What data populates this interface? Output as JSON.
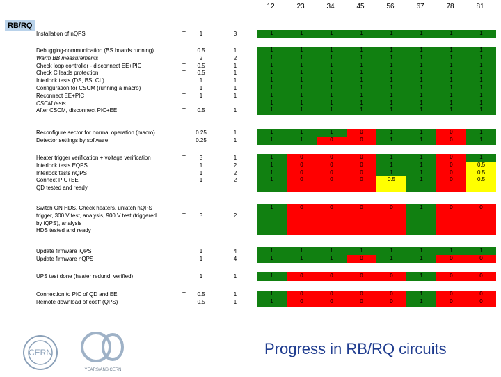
{
  "header": {
    "columns": [
      "12",
      "23",
      "34",
      "45",
      "56",
      "67",
      "78",
      "81"
    ]
  },
  "section_tag": "RB/RQ",
  "colors": {
    "green": "#118011",
    "red": "#ff0000",
    "yellow": "#ffff00",
    "blue": "#1f3c8f"
  },
  "groups": [
    {
      "lines": [
        {
          "t": "Installation of nQPS",
          "i": false
        }
      ],
      "t": [
        "T"
      ],
      "c1": [
        "1"
      ],
      "c2": [
        "3"
      ],
      "cells": [
        [
          "1",
          "1",
          "1",
          "1",
          "1",
          "1",
          "1",
          "1"
        ]
      ]
    },
    {
      "lines": [
        {
          "t": "Debugging-communication (BS boards running)",
          "i": false
        },
        {
          "t": "Warm BB measurements",
          "i": true
        },
        {
          "t": "Check loop controller - disconnect EE+PIC",
          "i": false
        },
        {
          "t": "Check C leads protection",
          "i": false
        },
        {
          "t": "Interlock tests (DS, BS, CL)",
          "i": false
        },
        {
          "t": "Configuration for CSCM (running a macro)",
          "i": false
        },
        {
          "t": "Reconnect EE+PIC",
          "i": false
        },
        {
          "t": "CSCM tests",
          "i": true
        },
        {
          "t": "After CSCM, disconnect PIC+EE",
          "i": false
        }
      ],
      "t": [
        "",
        "",
        "T",
        "T",
        "",
        "",
        "T",
        "",
        "T"
      ],
      "c1": [
        "0.5",
        "2",
        "0.5",
        "0.5",
        "1",
        "1",
        "1",
        "",
        "0.5"
      ],
      "c2": [
        "1",
        "2",
        "1",
        "1",
        "1",
        "1",
        "1",
        "",
        "1"
      ],
      "cells": [
        [
          "1",
          "1",
          "1",
          "1",
          "1",
          "1",
          "1",
          "1"
        ],
        [
          "1",
          "1",
          "1",
          "1",
          "1",
          "1",
          "1",
          "1"
        ],
        [
          "1",
          "1",
          "1",
          "1",
          "1",
          "1",
          "1",
          "1"
        ],
        [
          "1",
          "1",
          "1",
          "1",
          "1",
          "1",
          "1",
          "1"
        ],
        [
          "1",
          "1",
          "1",
          "1",
          "1",
          "1",
          "1",
          "1"
        ],
        [
          "1",
          "1",
          "1",
          "1",
          "1",
          "1",
          "1",
          "1"
        ],
        [
          "1",
          "1",
          "1",
          "1",
          "1",
          "1",
          "1",
          "1"
        ],
        [
          "1",
          "1",
          "1",
          "1",
          "1",
          "1",
          "1",
          "1"
        ],
        [
          "1",
          "1",
          "1",
          "1",
          "1",
          "1",
          "1",
          "1"
        ]
      ]
    },
    {
      "lines": [
        {
          "t": "Reconfigure sector for normal operation (macro)",
          "i": false
        },
        {
          "t": "Detector settings by software",
          "i": false
        }
      ],
      "t": [
        "",
        ""
      ],
      "c1": [
        "0.25",
        "0.25"
      ],
      "c2": [
        "1",
        "1"
      ],
      "cells": [
        [
          "1",
          "1",
          "1",
          "0",
          "1",
          "1",
          "0",
          "1"
        ],
        [
          "1",
          "1",
          "0",
          "0",
          "1",
          "1",
          "0",
          "1"
        ]
      ]
    },
    {
      "lines": [
        {
          "t": "Heater trigger verification + voltage verification",
          "i": false
        },
        {
          "t": "Interlock tests EQPS",
          "i": false
        },
        {
          "t": "Interlock tests nQPS",
          "i": false
        },
        {
          "t": "Connect PIC+EE",
          "i": false
        },
        {
          "t": "QD tested and ready",
          "i": false
        }
      ],
      "t": [
        "T",
        "",
        "",
        "T",
        ""
      ],
      "c1": [
        "3",
        "1",
        "1",
        "1",
        ""
      ],
      "c2": [
        "1",
        "2",
        "2",
        "2",
        ""
      ],
      "cells": [
        [
          "1",
          "0",
          "0",
          "0",
          "1",
          "1",
          "0",
          "1"
        ],
        [
          "1",
          "0",
          "0",
          "0",
          "1",
          "1",
          "0",
          "0.5"
        ],
        [
          "1",
          "0",
          "0",
          "0",
          "1",
          "1",
          "0",
          "0.5"
        ],
        [
          "1",
          "0",
          "0",
          "0",
          "0.5",
          "1",
          "0",
          "0.5"
        ],
        [
          "",
          "",
          "",
          "",
          "",
          "",
          "",
          ""
        ]
      ]
    },
    {
      "lines": [
        {
          "t": "Switch ON HDS, Check heaters, unlatch nQPS",
          "i": false
        },
        {
          "t": "trigger, 300 V test, analysis, 900 V test (triggered",
          "i": false
        },
        {
          "t": "by iQPS), analysis",
          "i": false
        },
        {
          "t": "HDS tested and ready",
          "i": false
        }
      ],
      "t": [
        "",
        "T",
        "",
        ""
      ],
      "c1": [
        "",
        "3",
        "",
        ""
      ],
      "c2": [
        "",
        "2",
        "",
        ""
      ],
      "cells": [
        [
          "1",
          "0",
          "0",
          "0",
          "0",
          "1",
          "0",
          "0"
        ],
        [
          "",
          "",
          "",
          "",
          "",
          "",
          "",
          ""
        ],
        [
          "",
          "",
          "",
          "",
          "",
          "",
          "",
          ""
        ],
        [
          "",
          "",
          "",
          "",
          "",
          "",
          "",
          ""
        ]
      ]
    },
    {
      "lines": [
        {
          "t": "Update firmware iQPS",
          "i": false
        },
        {
          "t": "Update firmware nQPS",
          "i": false
        }
      ],
      "t": [
        "",
        ""
      ],
      "c1": [
        "1",
        "1"
      ],
      "c2": [
        "4",
        "4"
      ],
      "cells": [
        [
          "1",
          "1",
          "1",
          "1",
          "1",
          "1",
          "1",
          "1"
        ],
        [
          "1",
          "1",
          "1",
          "0",
          "1",
          "1",
          "0",
          "0"
        ]
      ]
    },
    {
      "lines": [
        {
          "t": "UPS test done (heater redund. verified)",
          "i": false
        }
      ],
      "t": [
        ""
      ],
      "c1": [
        "1"
      ],
      "c2": [
        "1"
      ],
      "cells": [
        [
          "1",
          "0",
          "0",
          "0",
          "0",
          "1",
          "0",
          "0"
        ]
      ]
    },
    {
      "lines": [
        {
          "t": "Connection to PIC of QD and EE",
          "i": false
        },
        {
          "t": "Remote download of coeff (QPS)",
          "i": false
        }
      ],
      "t": [
        "T",
        ""
      ],
      "c1": [
        "0.5",
        "0.5"
      ],
      "c2": [
        "1",
        "1"
      ],
      "cells": [
        [
          "1",
          "0",
          "0",
          "0",
          "0",
          "1",
          "0",
          "0"
        ],
        [
          "1",
          "0",
          "0",
          "0",
          "0",
          "1",
          "0",
          "0"
        ]
      ]
    }
  ],
  "footer": {
    "title": "Progress in RB/RQ circuits",
    "logo_text": "YEARS/ANS CERN"
  }
}
